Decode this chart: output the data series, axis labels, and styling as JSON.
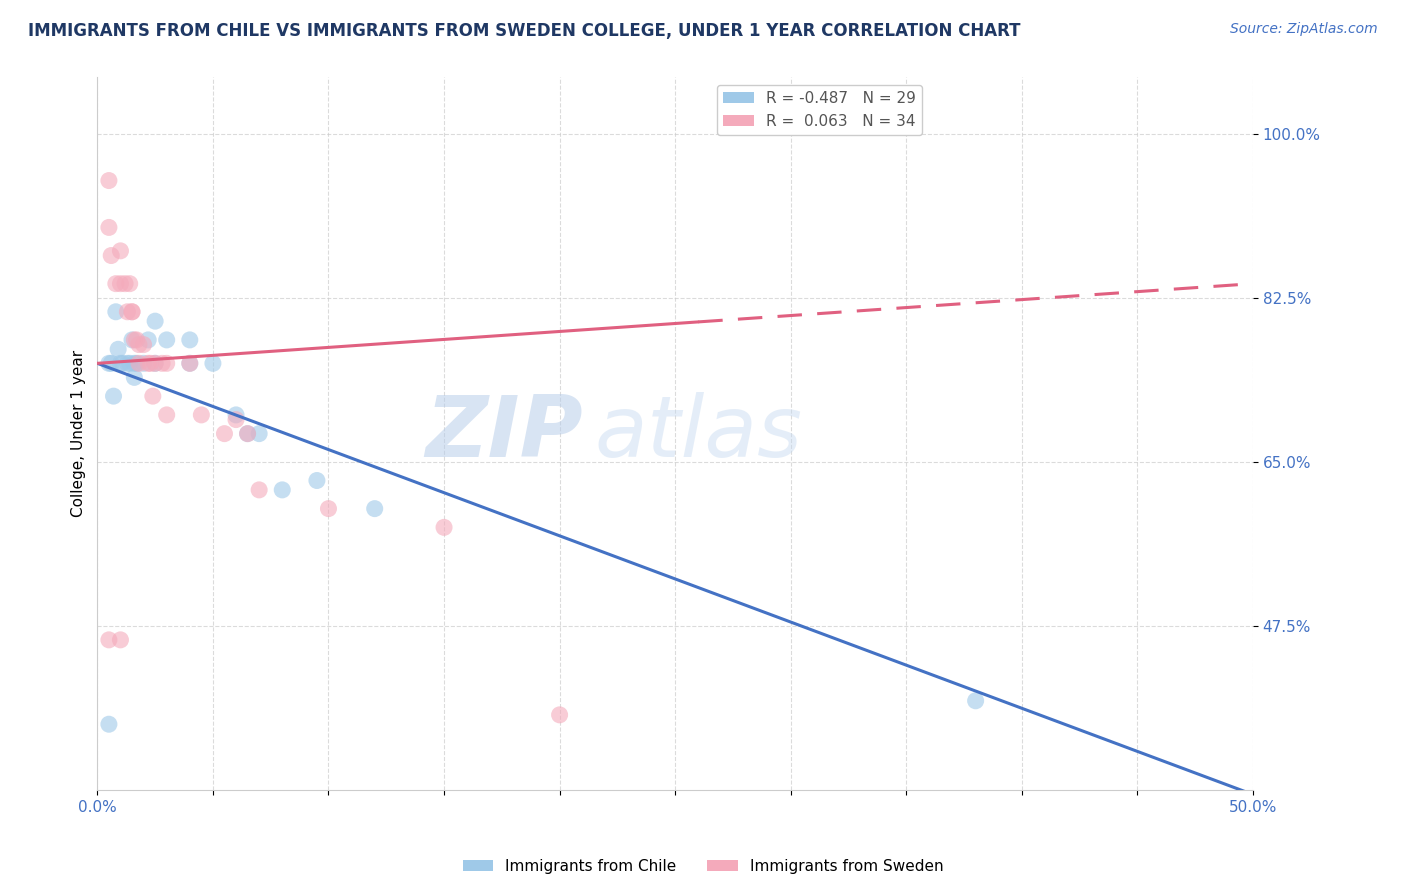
{
  "title": "IMMIGRANTS FROM CHILE VS IMMIGRANTS FROM SWEDEN COLLEGE, UNDER 1 YEAR CORRELATION CHART",
  "source": "Source: ZipAtlas.com",
  "ylabel": "College, Under 1 year",
  "legend_label_chile": "Immigrants from Chile",
  "legend_label_sweden": "Immigrants from Sweden",
  "R_chile": -0.487,
  "N_chile": 29,
  "R_sweden": 0.063,
  "N_sweden": 34,
  "xlim": [
    0.0,
    0.5
  ],
  "ylim": [
    0.3,
    1.06
  ],
  "yticks": [
    0.475,
    0.65,
    0.825,
    1.0
  ],
  "xticks": [
    0.0,
    0.05,
    0.1,
    0.15,
    0.2,
    0.25,
    0.3,
    0.35,
    0.4,
    0.45,
    0.5
  ],
  "chile_scatter": [
    [
      0.006,
      0.755
    ],
    [
      0.007,
      0.72
    ],
    [
      0.008,
      0.81
    ],
    [
      0.009,
      0.77
    ],
    [
      0.01,
      0.755
    ],
    [
      0.011,
      0.755
    ],
    [
      0.013,
      0.755
    ],
    [
      0.014,
      0.755
    ],
    [
      0.015,
      0.78
    ],
    [
      0.016,
      0.755
    ],
    [
      0.016,
      0.74
    ],
    [
      0.017,
      0.755
    ],
    [
      0.02,
      0.755
    ],
    [
      0.022,
      0.78
    ],
    [
      0.025,
      0.8
    ],
    [
      0.025,
      0.755
    ],
    [
      0.03,
      0.78
    ],
    [
      0.04,
      0.78
    ],
    [
      0.04,
      0.755
    ],
    [
      0.05,
      0.755
    ],
    [
      0.06,
      0.7
    ],
    [
      0.065,
      0.68
    ],
    [
      0.07,
      0.68
    ],
    [
      0.08,
      0.62
    ],
    [
      0.095,
      0.63
    ],
    [
      0.12,
      0.6
    ],
    [
      0.005,
      0.37
    ],
    [
      0.38,
      0.395
    ],
    [
      0.005,
      0.755
    ]
  ],
  "sweden_scatter": [
    [
      0.005,
      0.95
    ],
    [
      0.005,
      0.9
    ],
    [
      0.006,
      0.87
    ],
    [
      0.008,
      0.84
    ],
    [
      0.01,
      0.875
    ],
    [
      0.01,
      0.84
    ],
    [
      0.012,
      0.84
    ],
    [
      0.013,
      0.81
    ],
    [
      0.014,
      0.84
    ],
    [
      0.015,
      0.81
    ],
    [
      0.015,
      0.81
    ],
    [
      0.016,
      0.78
    ],
    [
      0.017,
      0.78
    ],
    [
      0.018,
      0.775
    ],
    [
      0.018,
      0.755
    ],
    [
      0.02,
      0.775
    ],
    [
      0.022,
      0.755
    ],
    [
      0.023,
      0.755
    ],
    [
      0.024,
      0.72
    ],
    [
      0.025,
      0.755
    ],
    [
      0.028,
      0.755
    ],
    [
      0.03,
      0.7
    ],
    [
      0.03,
      0.755
    ],
    [
      0.04,
      0.755
    ],
    [
      0.045,
      0.7
    ],
    [
      0.055,
      0.68
    ],
    [
      0.06,
      0.695
    ],
    [
      0.065,
      0.68
    ],
    [
      0.07,
      0.62
    ],
    [
      0.1,
      0.6
    ],
    [
      0.15,
      0.58
    ],
    [
      0.005,
      0.46
    ],
    [
      0.01,
      0.46
    ],
    [
      0.2,
      0.38
    ]
  ],
  "chile_line_x": [
    0.0,
    0.5
  ],
  "chile_line_y": [
    0.755,
    0.295
  ],
  "sweden_line_x": [
    0.0,
    0.5
  ],
  "sweden_line_y": [
    0.755,
    0.84
  ],
  "color_chile": "#9FC9E8",
  "color_sweden": "#F4AABB",
  "color_chile_line": "#4472C4",
  "color_sweden_line": "#E06080",
  "background_color": "#FFFFFF",
  "grid_color": "#CCCCCC",
  "watermark_zip": "ZIP",
  "watermark_atlas": "atlas",
  "title_fontsize": 12,
  "axis_label_fontsize": 11,
  "tick_fontsize": 11,
  "source_fontsize": 10
}
